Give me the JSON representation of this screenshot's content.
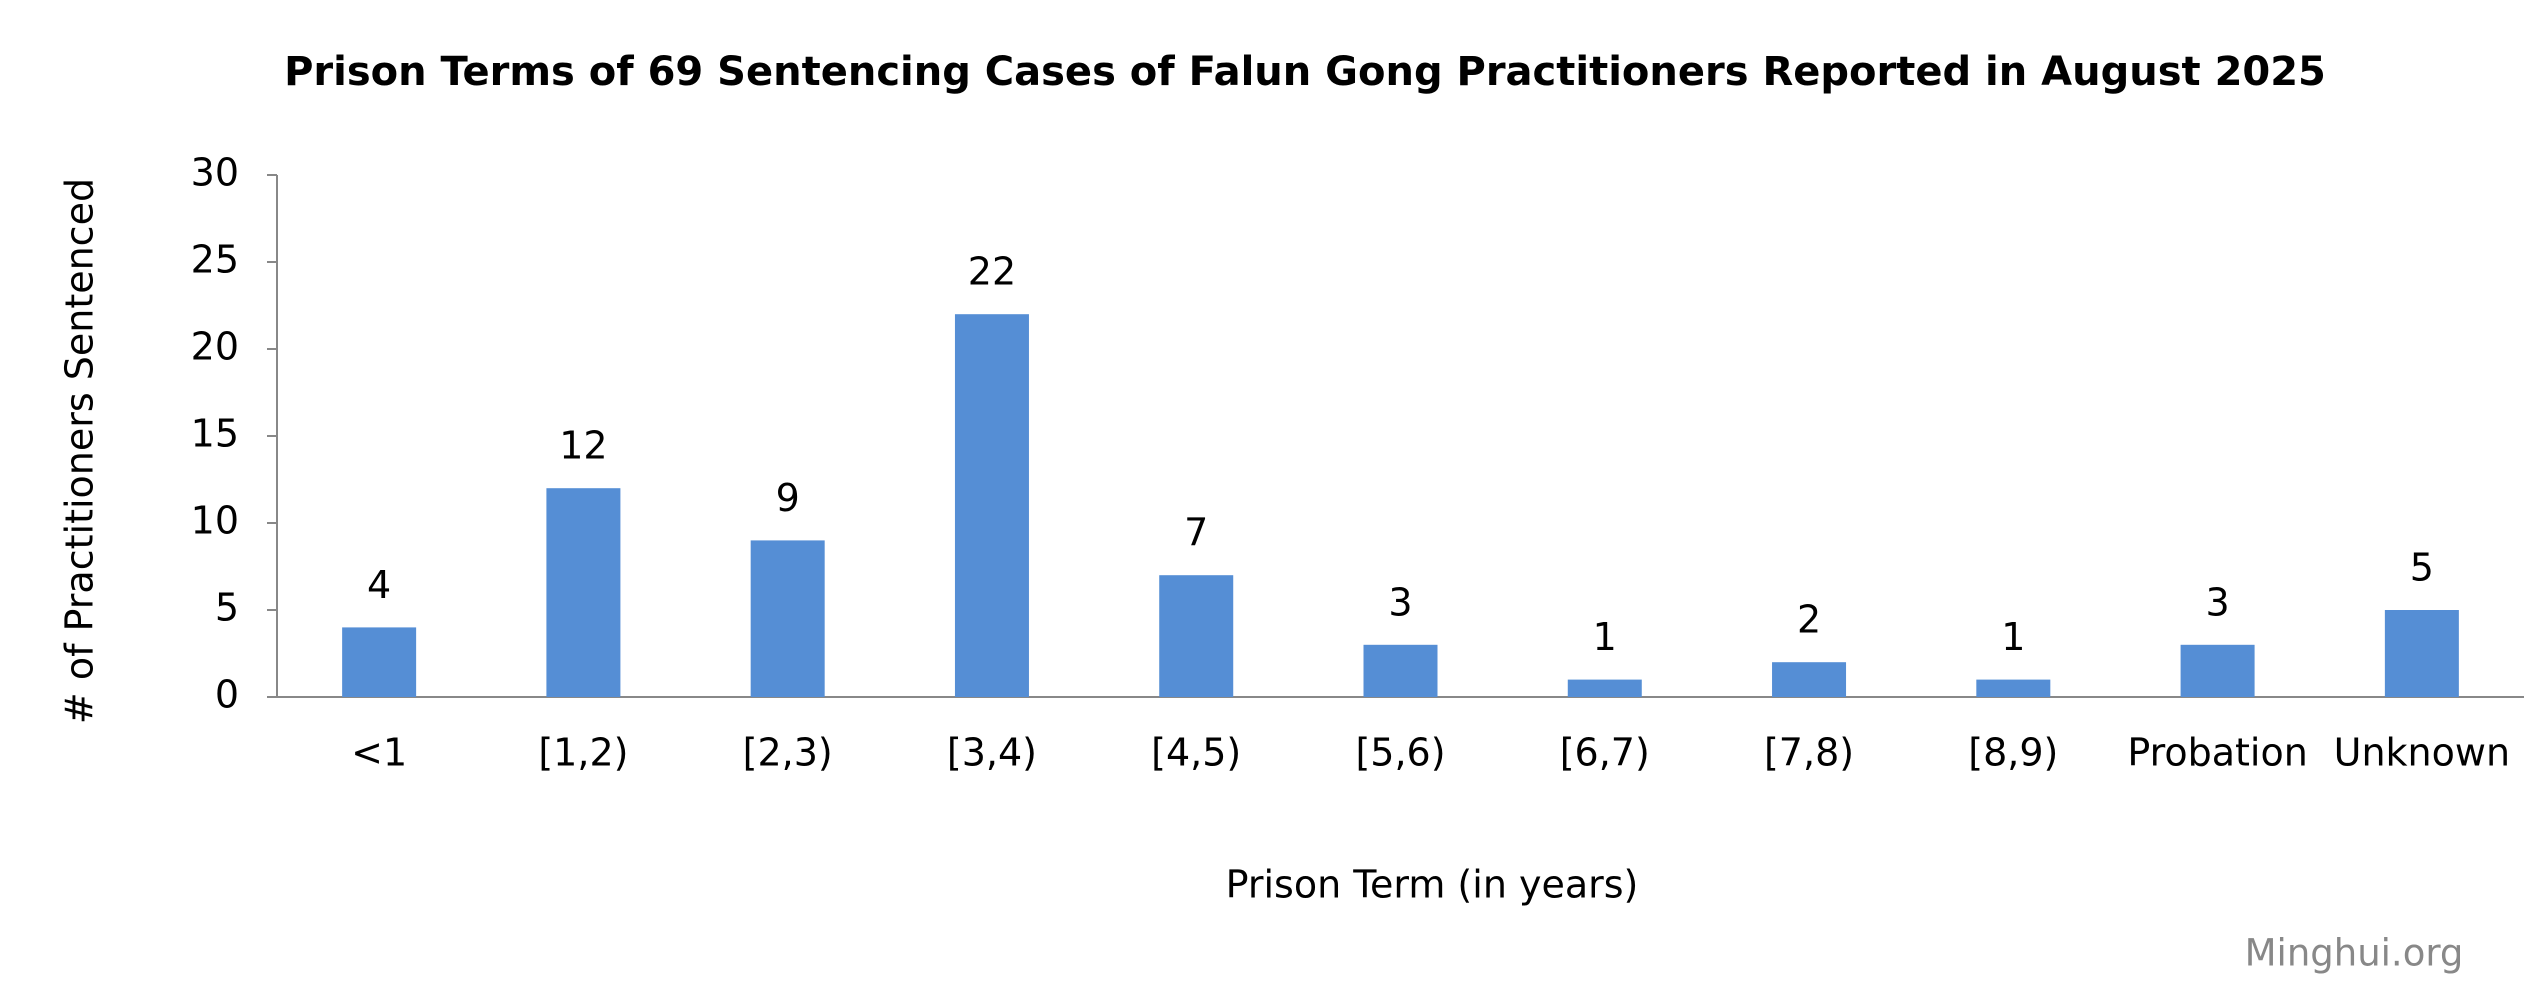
{
  "chart_data": {
    "type": "bar",
    "title": "Prison Terms of 69 Sentencing Cases of Falun Gong Practitioners Reported in August 2025",
    "x_label": "Prison Term (in years)",
    "y_label": "# of Practitioners Sentenced",
    "watermark": "Minghui.org",
    "categories": [
      "<1",
      "[1,2)",
      "[2,3)",
      "[3,4)",
      "[4,5)",
      "[5,6)",
      "[6,7)",
      "[7,8)",
      "[8,9)",
      "Probation",
      "Unknown"
    ],
    "values": [
      4,
      12,
      9,
      22,
      7,
      3,
      1,
      2,
      1,
      3,
      5
    ],
    "color": "#558ed5",
    "ylim": [
      0,
      30
    ],
    "yticks": [
      0,
      5,
      10,
      15,
      20,
      25,
      30
    ],
    "grid": false
  }
}
